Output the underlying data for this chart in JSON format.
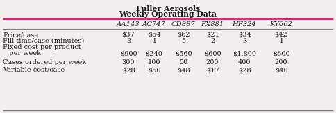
{
  "title1": "Fuller Aerosols",
  "title2": "Weekly Operating Data",
  "columns": [
    "AA143",
    "AC747",
    "CD887",
    "FX881",
    "HF324",
    "KY662"
  ],
  "row_labels": [
    "Price/case",
    "Fill time/case (minutes)",
    "Fixed cost per product",
    "   per week",
    "Cases ordered per week",
    "Variable cost/case"
  ],
  "data": [
    [
      "$37",
      "$54",
      "$62",
      "$21",
      "$34",
      "$42"
    ],
    [
      "3",
      "4",
      "5",
      "2",
      "3",
      "4"
    ],
    [
      "",
      "",
      "",
      "",
      "",
      ""
    ],
    [
      "$900",
      "$240",
      "$560",
      "$600",
      "$1,800",
      "$600"
    ],
    [
      "300",
      "100",
      "50",
      "200",
      "400",
      "200"
    ],
    [
      "$28",
      "$50",
      "$48",
      "$17",
      "$28",
      "$40"
    ]
  ],
  "accent_color": "#cc3377",
  "bg_color": "#f2eeee",
  "text_color": "#1a1a1a",
  "title_fontsize": 7.8,
  "header_fontsize": 7.2,
  "cell_fontsize": 7.0,
  "label_fontsize": 7.0
}
